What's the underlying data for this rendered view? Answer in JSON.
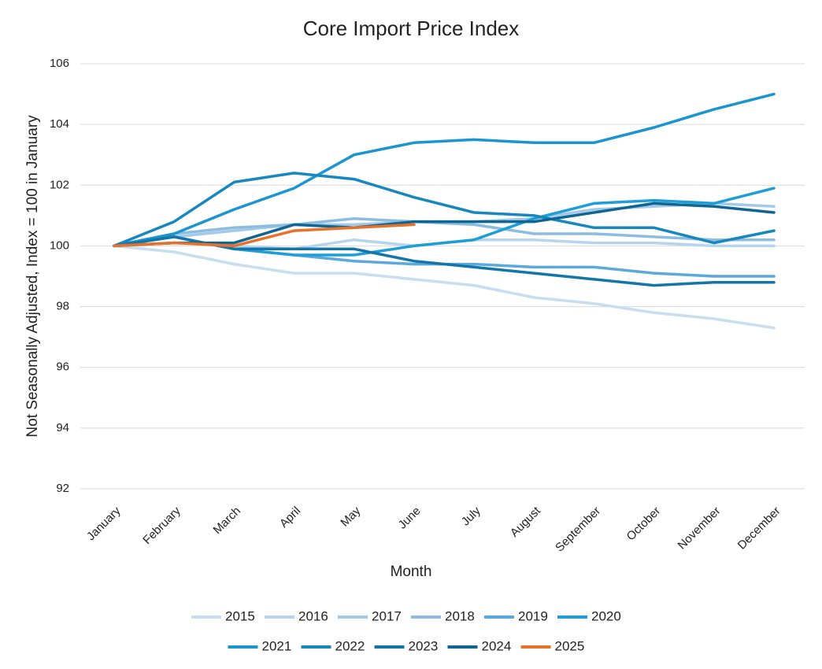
{
  "chart_data": {
    "type": "line",
    "title": "Core Import Price Index",
    "x_label": "Month",
    "y_label": "Not Seasonally Adjusted, Index = 100 in January",
    "categories": [
      "January",
      "February",
      "March",
      "April",
      "May",
      "June",
      "July",
      "August",
      "September",
      "October",
      "November",
      "December"
    ],
    "ylim": [
      92,
      106
    ],
    "yticks": [
      92,
      94,
      96,
      98,
      100,
      102,
      104,
      106
    ],
    "grid": true,
    "legend": "bottom",
    "series": [
      {
        "name": "2015",
        "color": "#c7ddf0",
        "values": [
          100,
          99.8,
          99.4,
          99.1,
          99.1,
          98.9,
          98.7,
          98.3,
          98.1,
          97.8,
          97.6,
          97.3
        ]
      },
      {
        "name": "2016",
        "color": "#b6d4ed",
        "values": [
          100,
          100.1,
          100.0,
          99.9,
          100.2,
          100.0,
          100.2,
          100.2,
          100.1,
          100.1,
          100.0,
          100.0
        ]
      },
      {
        "name": "2017",
        "color": "#a3c9e7",
        "values": [
          100,
          100.3,
          100.5,
          100.7,
          100.7,
          100.8,
          100.8,
          100.9,
          101.2,
          101.3,
          101.4,
          101.3
        ]
      },
      {
        "name": "2018",
        "color": "#8dbce1",
        "values": [
          100,
          100.4,
          100.6,
          100.7,
          100.9,
          100.8,
          100.7,
          100.4,
          100.4,
          100.3,
          100.2,
          100.2
        ]
      },
      {
        "name": "2019",
        "color": "#5ba8dc",
        "values": [
          100,
          100.3,
          99.9,
          99.7,
          99.5,
          99.4,
          99.4,
          99.3,
          99.3,
          99.1,
          99.0,
          99.0
        ]
      },
      {
        "name": "2020",
        "color": "#1e9ed9",
        "values": [
          100,
          100.3,
          99.9,
          99.7,
          99.7,
          100.0,
          100.2,
          100.9,
          101.4,
          101.5,
          101.4,
          101.9
        ]
      },
      {
        "name": "2021",
        "color": "#1b95cf",
        "values": [
          100,
          100.4,
          101.2,
          101.9,
          103.0,
          103.4,
          103.5,
          103.4,
          103.4,
          103.9,
          104.5,
          105.0
        ]
      },
      {
        "name": "2022",
        "color": "#1787bf",
        "values": [
          100,
          100.8,
          102.1,
          102.4,
          102.2,
          101.6,
          101.1,
          101.0,
          100.6,
          100.6,
          100.1,
          100.5
        ]
      },
      {
        "name": "2023",
        "color": "#1476a8",
        "values": [
          100,
          100.3,
          99.9,
          99.9,
          99.9,
          99.5,
          99.3,
          99.1,
          98.9,
          98.7,
          98.8,
          98.8
        ]
      },
      {
        "name": "2024",
        "color": "#0f6693",
        "values": [
          100,
          100.1,
          100.1,
          100.7,
          100.6,
          100.8,
          100.8,
          100.8,
          101.1,
          101.4,
          101.3,
          101.1
        ]
      },
      {
        "name": "2025",
        "color": "#e8712a",
        "values": [
          100,
          100.1,
          100.0,
          100.5,
          100.6,
          100.7,
          null,
          null,
          null,
          null,
          null,
          null
        ]
      }
    ]
  }
}
